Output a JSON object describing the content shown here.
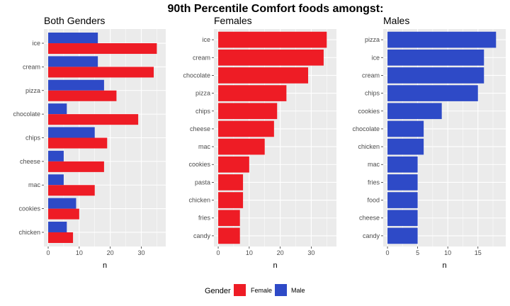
{
  "title": "90th Percentile Comfort foods amongst:",
  "colors": {
    "Female": "#ee1c25",
    "Male": "#2e4ac7",
    "panel_bg": "#ebebeb",
    "grid": "#ffffff"
  },
  "legend": {
    "title": "Gender",
    "entries": [
      "Female",
      "Male"
    ]
  },
  "chart_data": [
    {
      "type": "bar",
      "orientation": "horizontal",
      "title": "Both Genders",
      "xlabel": "n",
      "ylabel": "",
      "xlim": [
        0,
        36.5
      ],
      "xticks": [
        0,
        10,
        20,
        30
      ],
      "categories": [
        "ice",
        "cream",
        "pizza",
        "chocolate",
        "chips",
        "cheese",
        "mac",
        "cookies",
        "chicken"
      ],
      "series": [
        {
          "name": "Male",
          "values": [
            16,
            16,
            18,
            6,
            15,
            5,
            5,
            9,
            6
          ]
        },
        {
          "name": "Female",
          "values": [
            35,
            34,
            22,
            29,
            19,
            18,
            15,
            10,
            8
          ]
        }
      ]
    },
    {
      "type": "bar",
      "orientation": "horizontal",
      "title": "Females",
      "xlabel": "n",
      "ylabel": "",
      "xlim": [
        0,
        36.75
      ],
      "xticks": [
        0,
        10,
        20,
        30
      ],
      "categories": [
        "ice",
        "cream",
        "chocolate",
        "pizza",
        "chips",
        "cheese",
        "mac",
        "cookies",
        "pasta",
        "chicken",
        "fries",
        "candy"
      ],
      "series": [
        {
          "name": "Female",
          "values": [
            35,
            34,
            29,
            22,
            19,
            18,
            15,
            10,
            8,
            8,
            7,
            7
          ]
        }
      ]
    },
    {
      "type": "bar",
      "orientation": "horizontal",
      "title": "Males",
      "xlabel": "n",
      "ylabel": "",
      "xlim": [
        0,
        18.9
      ],
      "xticks": [
        0,
        5,
        10,
        15
      ],
      "categories": [
        "pizza",
        "ice",
        "cream",
        "chips",
        "cookies",
        "chocolate",
        "chicken",
        "mac",
        "fries",
        "food",
        "cheese",
        "candy"
      ],
      "series": [
        {
          "name": "Male",
          "values": [
            18,
            16,
            16,
            15,
            9,
            6,
            6,
            5,
            5,
            5,
            5,
            5
          ]
        }
      ]
    }
  ]
}
